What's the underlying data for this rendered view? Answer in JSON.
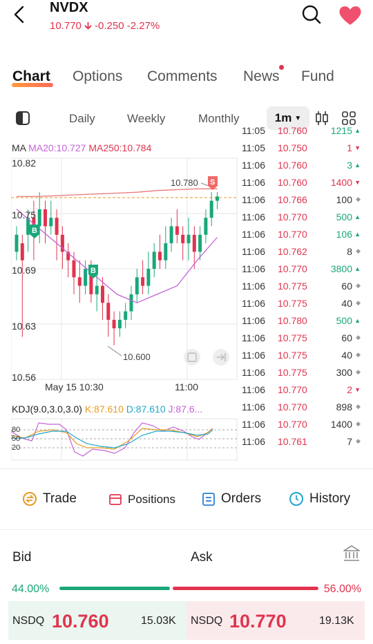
{
  "header": {
    "symbol": "NVDX",
    "price": "10.770",
    "change": "-0.250",
    "change_pct": "-2.27%"
  },
  "tabs": [
    {
      "label": "Chart"
    },
    {
      "label": "Options"
    },
    {
      "label": "Comments"
    },
    {
      "label": "News"
    },
    {
      "label": "Fund"
    }
  ],
  "periods": {
    "daily": "Daily",
    "weekly": "Weekly",
    "monthly": "Monthly",
    "selected": "1m"
  },
  "chart": {
    "ma_label": "MA",
    "ma20": "MA20:10.727",
    "ma250": "MA250:10.784",
    "y_ticks": [
      "10.82",
      "10.75",
      "10.69",
      "10.63",
      "10.56"
    ],
    "x_ticks": [
      "May 15 10:30",
      "11:00"
    ],
    "high_annotation": "10.780",
    "low_annotation": "10.600",
    "buy_marker": "B",
    "sell_marker": "S",
    "kdj": {
      "label": "KDJ(9.0,3.0,3.0)",
      "k": "K:87.610",
      "d": "D:87.610",
      "j": "J:87.6...",
      "levels": [
        "80",
        "50",
        "20"
      ]
    }
  },
  "chart_data": {
    "type": "candlestick",
    "ylim": [
      10.56,
      10.82
    ],
    "ma250": [
      10.775,
      10.775,
      10.776,
      10.777,
      10.778,
      10.779,
      10.78,
      10.782,
      10.783,
      10.784,
      10.784
    ],
    "ma20": [
      10.76,
      10.74,
      10.72,
      10.7,
      10.68,
      10.66,
      10.65,
      10.66,
      10.67,
      10.7,
      10.727
    ]
  },
  "tape": [
    {
      "time": "11:05",
      "price": "10.760",
      "vol": "1215",
      "dir": "up"
    },
    {
      "time": "11:05",
      "price": "10.750",
      "vol": "1",
      "dir": "dn"
    },
    {
      "time": "11:06",
      "price": "10.760",
      "vol": "3",
      "dir": "up"
    },
    {
      "time": "11:06",
      "price": "10.760",
      "vol": "1400",
      "dir": "dn"
    },
    {
      "time": "11:06",
      "price": "10.766",
      "vol": "100",
      "dir": "eq"
    },
    {
      "time": "11:06",
      "price": "10.770",
      "vol": "500",
      "dir": "up"
    },
    {
      "time": "11:06",
      "price": "10.770",
      "vol": "106",
      "dir": "up"
    },
    {
      "time": "11:06",
      "price": "10.762",
      "vol": "8",
      "dir": "eq"
    },
    {
      "time": "11:06",
      "price": "10.770",
      "vol": "3800",
      "dir": "up"
    },
    {
      "time": "11:06",
      "price": "10.775",
      "vol": "60",
      "dir": "eq"
    },
    {
      "time": "11:06",
      "price": "10.775",
      "vol": "40",
      "dir": "eq"
    },
    {
      "time": "11:06",
      "price": "10.780",
      "vol": "500",
      "dir": "up"
    },
    {
      "time": "11:06",
      "price": "10.775",
      "vol": "60",
      "dir": "eq"
    },
    {
      "time": "11:06",
      "price": "10.775",
      "vol": "40",
      "dir": "eq"
    },
    {
      "time": "11:06",
      "price": "10.775",
      "vol": "300",
      "dir": "eq"
    },
    {
      "time": "11:06",
      "price": "10.770",
      "vol": "2",
      "dir": "dn"
    },
    {
      "time": "11:06",
      "price": "10.770",
      "vol": "898",
      "dir": "eq"
    },
    {
      "time": "11:06",
      "price": "10.770",
      "vol": "1400",
      "dir": "eq"
    },
    {
      "time": "11:06",
      "price": "10.761",
      "vol": "7",
      "dir": "eq"
    }
  ],
  "actions": {
    "trade": "Trade",
    "positions": "Positions",
    "orders": "Orders",
    "history": "History"
  },
  "orderbook": {
    "bid_label": "Bid",
    "ask_label": "Ask",
    "bid_pct": "44.00%",
    "ask_pct": "56.00%",
    "bid_exchange": "NSDQ",
    "bid_price": "10.760",
    "bid_size": "15.03K",
    "ask_exchange": "NSDQ",
    "ask_price": "10.770",
    "ask_size": "19.13K"
  },
  "colors": {
    "up": "#1aa77a",
    "down": "#e0344f",
    "ma20": "#c462d8",
    "ma250": "#e0344f"
  }
}
